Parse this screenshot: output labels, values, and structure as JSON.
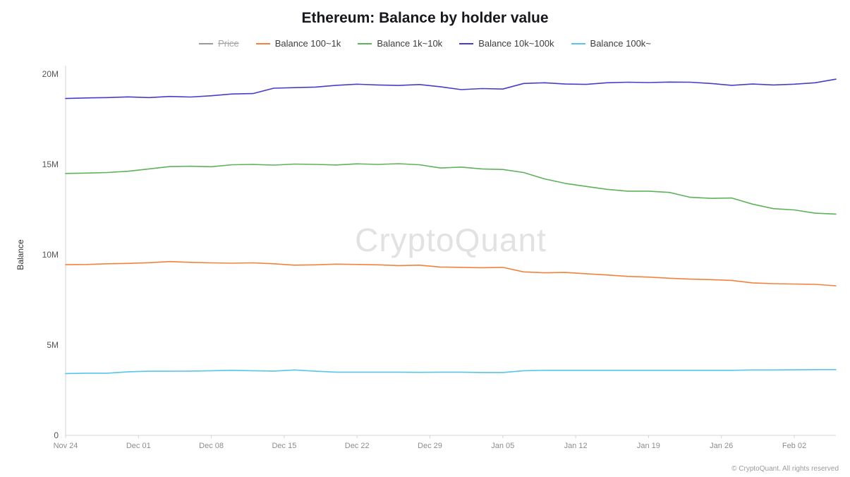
{
  "title": "Ethereum: Balance by holder value",
  "watermark": "CryptoQuant",
  "footer": "© CryptoQuant. All rights reserved",
  "colors": {
    "price_disabled": "#9a9a9a",
    "balance_100_1k": "#f5823a",
    "balance_1k_10k": "#5fb25a",
    "balance_10k_100k": "#473dca",
    "balance_100k": "#58c5ea",
    "axis": "#d4d4d4"
  },
  "legend": [
    {
      "label": "Price",
      "color": "#9a9a9a",
      "disabled": true
    },
    {
      "label": "Balance 100~1k",
      "color": "#f5823a",
      "disabled": false
    },
    {
      "label": "Balance 1k~10k",
      "color": "#5fb25a",
      "disabled": false
    },
    {
      "label": "Balance 10k~100k",
      "color": "#473dca",
      "disabled": false
    },
    {
      "label": "Balance 100k~",
      "color": "#58c5ea",
      "disabled": false
    }
  ],
  "chart_data": {
    "type": "line",
    "title": "Ethereum: Balance by holder value",
    "xlabel": "",
    "ylabel": "Balance",
    "values_unit": "millions",
    "x_unit": "days since Nov 24",
    "xlim": [
      0,
      74
    ],
    "ylim_millions": [
      0,
      20
    ],
    "grid": false,
    "legend_position": "top",
    "y_ticks": [
      {
        "value": 0,
        "label": "0"
      },
      {
        "value": 5,
        "label": "5M"
      },
      {
        "value": 10,
        "label": "10M"
      },
      {
        "value": 15,
        "label": "15M"
      },
      {
        "value": 20,
        "label": "20M"
      }
    ],
    "x_ticks": [
      {
        "day": 0,
        "label": "Nov 24"
      },
      {
        "day": 7,
        "label": "Dec 01"
      },
      {
        "day": 14,
        "label": "Dec 08"
      },
      {
        "day": 21,
        "label": "Dec 15"
      },
      {
        "day": 28,
        "label": "Dec 22"
      },
      {
        "day": 35,
        "label": "Dec 29"
      },
      {
        "day": 42,
        "label": "Jan 05"
      },
      {
        "day": 49,
        "label": "Jan 12"
      },
      {
        "day": 56,
        "label": "Jan 19"
      },
      {
        "day": 63,
        "label": "Jan 26"
      },
      {
        "day": 70,
        "label": "Feb 02"
      }
    ],
    "x": [
      0,
      2,
      4,
      6,
      8,
      10,
      12,
      14,
      16,
      18,
      20,
      22,
      24,
      26,
      28,
      30,
      32,
      34,
      36,
      38,
      40,
      42,
      44,
      46,
      48,
      50,
      52,
      54,
      56,
      58,
      60,
      62,
      64,
      66,
      68,
      70,
      72,
      74
    ],
    "series": [
      {
        "name": "Price",
        "color": "#9a9a9a",
        "visible": false,
        "values": []
      },
      {
        "name": "Balance 100~1k",
        "color": "#f5823a",
        "visible": true,
        "values": [
          9.45,
          9.46,
          9.5,
          9.52,
          9.56,
          9.62,
          9.58,
          9.55,
          9.53,
          9.55,
          9.5,
          9.42,
          9.44,
          9.48,
          9.46,
          9.44,
          9.4,
          9.42,
          9.32,
          9.3,
          9.28,
          9.3,
          9.05,
          9.0,
          9.02,
          8.95,
          8.88,
          8.8,
          8.76,
          8.7,
          8.65,
          8.62,
          8.58,
          8.44,
          8.4,
          8.38,
          8.36,
          8.28
        ]
      },
      {
        "name": "Balance 1k~10k",
        "color": "#5fb25a",
        "visible": true,
        "values": [
          14.5,
          14.52,
          14.55,
          14.62,
          14.75,
          14.88,
          14.9,
          14.87,
          14.98,
          15.0,
          14.96,
          15.02,
          15.0,
          14.97,
          15.03,
          15.0,
          15.04,
          14.98,
          14.8,
          14.85,
          14.75,
          14.72,
          14.55,
          14.2,
          13.95,
          13.78,
          13.62,
          13.52,
          13.52,
          13.45,
          13.18,
          13.12,
          13.14,
          12.8,
          12.55,
          12.48,
          12.3,
          12.25
        ]
      },
      {
        "name": "Balance 10k~100k",
        "color": "#473dca",
        "visible": true,
        "values": [
          18.65,
          18.68,
          18.7,
          18.74,
          18.7,
          18.76,
          18.73,
          18.8,
          18.9,
          18.92,
          19.22,
          19.25,
          19.28,
          19.38,
          19.44,
          19.4,
          19.37,
          19.42,
          19.3,
          19.14,
          19.2,
          19.17,
          19.48,
          19.52,
          19.45,
          19.43,
          19.52,
          19.55,
          19.53,
          19.56,
          19.55,
          19.48,
          19.38,
          19.45,
          19.4,
          19.44,
          19.52,
          19.72
        ]
      },
      {
        "name": "Balance 100k~",
        "color": "#58c5ea",
        "visible": true,
        "values": [
          3.42,
          3.44,
          3.44,
          3.52,
          3.55,
          3.55,
          3.56,
          3.58,
          3.6,
          3.58,
          3.56,
          3.62,
          3.55,
          3.5,
          3.5,
          3.5,
          3.5,
          3.49,
          3.5,
          3.5,
          3.48,
          3.48,
          3.58,
          3.6,
          3.6,
          3.6,
          3.6,
          3.6,
          3.6,
          3.6,
          3.6,
          3.6,
          3.6,
          3.62,
          3.62,
          3.63,
          3.64,
          3.64
        ]
      }
    ]
  }
}
